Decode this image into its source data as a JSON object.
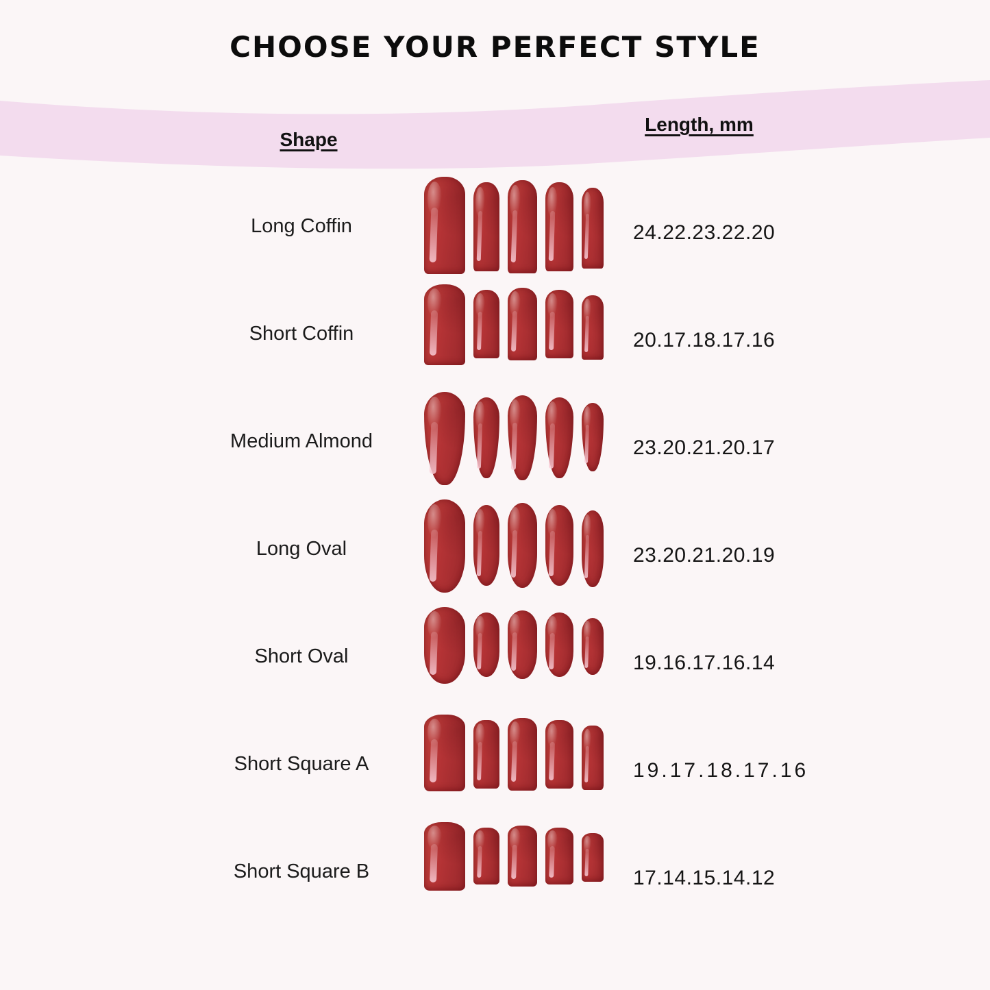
{
  "title": "CHOOSE YOUR PERFECT STYLE",
  "colors": {
    "background": "#fbf6f7",
    "band": "#f3dcee",
    "nail_red": "#b43335",
    "text": "#141414"
  },
  "table": {
    "shape_header": "Shape",
    "length_header": "Length, mm",
    "rows": [
      {
        "shape": "Long Coffin",
        "lengths": "24.22.23.22.20",
        "lengths_mm": [
          24,
          22,
          23,
          22,
          20
        ],
        "nail_shape": "coffin",
        "spaced": false
      },
      {
        "shape": "Short Coffin",
        "lengths": "20.17.18.17.16",
        "lengths_mm": [
          20,
          17,
          18,
          17,
          16
        ],
        "nail_shape": "coffin",
        "spaced": false
      },
      {
        "shape": "Medium Almond",
        "lengths": "23.20.21.20.17",
        "lengths_mm": [
          23,
          20,
          21,
          20,
          17
        ],
        "nail_shape": "almond",
        "spaced": false
      },
      {
        "shape": "Long Oval",
        "lengths": "23.20.21.20.19",
        "lengths_mm": [
          23,
          20,
          21,
          20,
          19
        ],
        "nail_shape": "oval",
        "spaced": false
      },
      {
        "shape": "Short Oval",
        "lengths": "19.16.17.16.14",
        "lengths_mm": [
          19,
          16,
          17,
          16,
          14
        ],
        "nail_shape": "oval",
        "spaced": false
      },
      {
        "shape": "Short Square A",
        "lengths": "19.17.18.17.16",
        "lengths_mm": [
          19,
          17,
          18,
          17,
          16
        ],
        "nail_shape": "square",
        "spaced": true
      },
      {
        "shape": "Short Square B",
        "lengths": "17.14.15.14.12",
        "lengths_mm": [
          17,
          14,
          15,
          14,
          12
        ],
        "nail_shape": "square",
        "spaced": false
      }
    ]
  },
  "chart_data": {
    "type": "table",
    "title": "CHOOSE YOUR PERFECT STYLE",
    "columns": [
      "Shape",
      "Length, mm"
    ],
    "rows": [
      [
        "Long Coffin",
        "24.22.23.22.20"
      ],
      [
        "Short Coffin",
        "20.17.18.17.16"
      ],
      [
        "Medium Almond",
        "23.20.21.20.17"
      ],
      [
        "Long Oval",
        "23.20.21.20.19"
      ],
      [
        "Short Oval",
        "19.16.17.16.14"
      ],
      [
        "Short Square A",
        "19.17.18.17.16"
      ],
      [
        "Short Square B",
        "17.14.15.14.12"
      ]
    ],
    "lengths_mm_per_finger": {
      "Long Coffin": [
        24,
        22,
        23,
        22,
        20
      ],
      "Short Coffin": [
        20,
        17,
        18,
        17,
        16
      ],
      "Medium Almond": [
        23,
        20,
        21,
        20,
        17
      ],
      "Long Oval": [
        23,
        20,
        21,
        20,
        19
      ],
      "Short Oval": [
        19,
        16,
        17,
        16,
        14
      ],
      "Short Square A": [
        19,
        17,
        18,
        17,
        16
      ],
      "Short Square B": [
        17,
        14,
        15,
        14,
        12
      ]
    }
  }
}
